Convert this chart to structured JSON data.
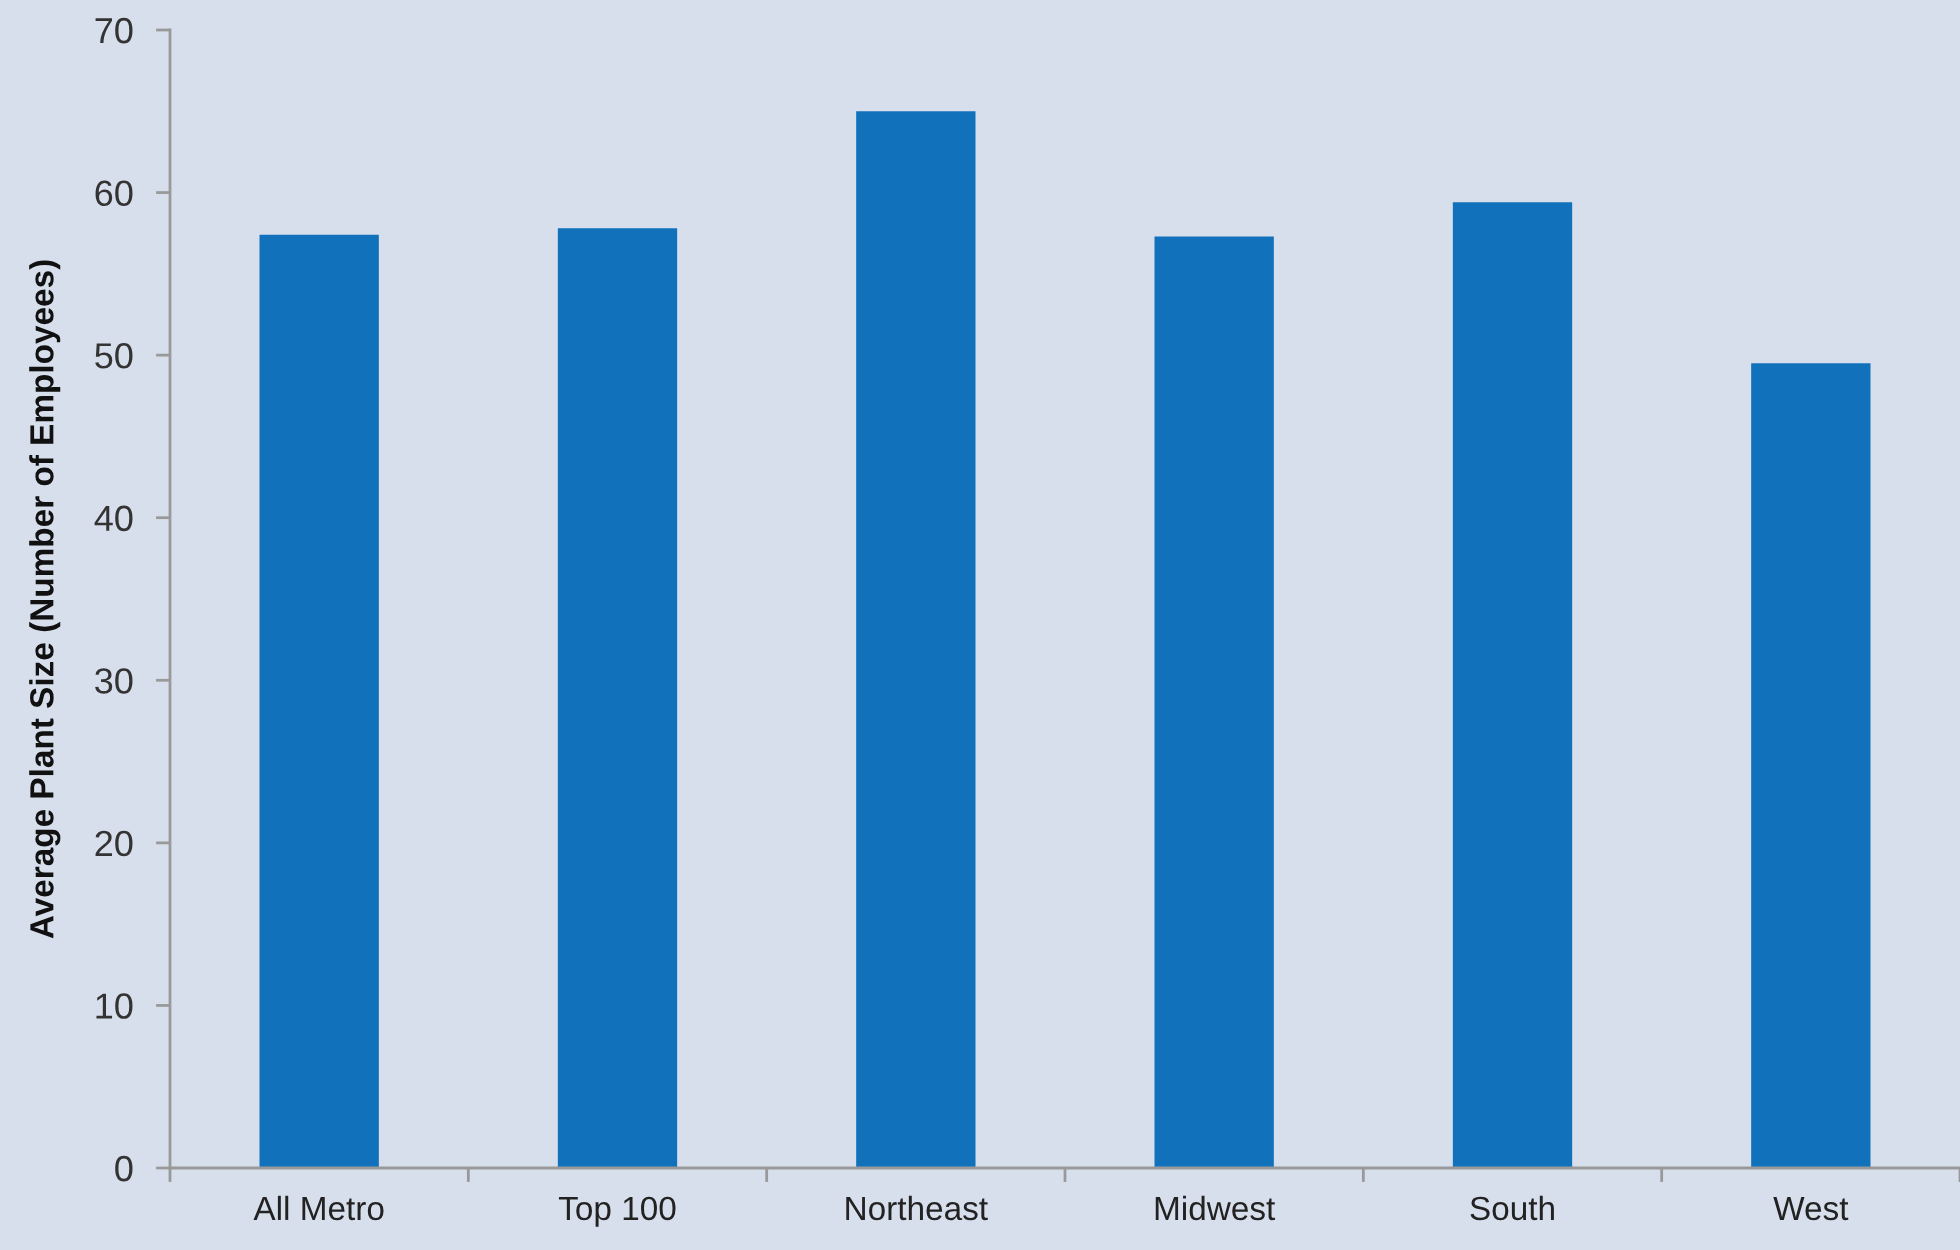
{
  "chart_data": {
    "type": "bar",
    "ylabel": "Average Plant Size (Number of Employees)",
    "categories": [
      "All Metro",
      "Top 100",
      "Northeast",
      "Midwest",
      "South",
      "West"
    ],
    "values": [
      57.4,
      57.8,
      65.0,
      57.3,
      59.4,
      49.5
    ],
    "color": "#1172bb",
    "ylim": [
      0,
      70
    ],
    "yticks": [
      0,
      10,
      20,
      30,
      40,
      50,
      60,
      70
    ],
    "grid": false
  }
}
